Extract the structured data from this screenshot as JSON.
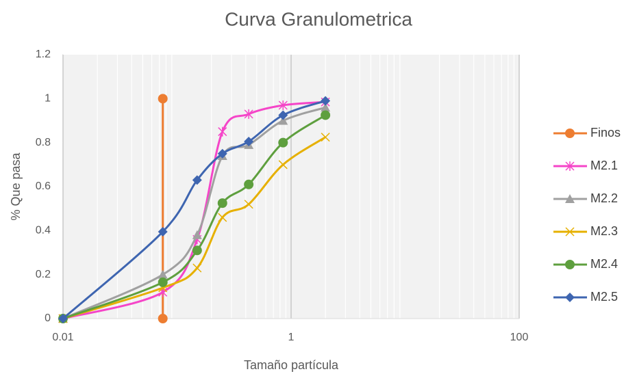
{
  "chart_data": {
    "type": "line",
    "title": "Curva Granulometrica",
    "x_label": "Tamaño partícula",
    "y_label": "% Que pasa",
    "xscale": "log",
    "xlim": [
      0.01,
      100
    ],
    "xticks": [
      0.01,
      1,
      100
    ],
    "ylim": [
      0,
      1.2
    ],
    "yticks": [
      0,
      0.2,
      0.4,
      0.6,
      0.8,
      1,
      1.2
    ],
    "grid": true,
    "legend": "right",
    "series": [
      {
        "name": "Finos",
        "color": "#ED7D31",
        "marker": "circle",
        "x": [
          0.075,
          0.075
        ],
        "values": [
          1,
          0
        ]
      },
      {
        "name": "M2.1",
        "color": "#F545C8",
        "marker": "star",
        "x": [
          0.01,
          0.075,
          0.15,
          0.25,
          0.425,
          0.85,
          2.0
        ],
        "values": [
          0,
          0.12,
          0.36,
          0.85,
          0.93,
          0.97,
          0.985
        ]
      },
      {
        "name": "M2.2",
        "color": "#A0A0A0",
        "marker": "triangle",
        "x": [
          0.01,
          0.075,
          0.15,
          0.25,
          0.425,
          0.85,
          2.0
        ],
        "values": [
          0,
          0.2,
          0.38,
          0.74,
          0.79,
          0.9,
          0.96
        ]
      },
      {
        "name": "M2.3",
        "color": "#E6B000",
        "marker": "x",
        "x": [
          0.01,
          0.075,
          0.15,
          0.25,
          0.425,
          0.85,
          2.0
        ],
        "values": [
          0,
          0.14,
          0.23,
          0.46,
          0.52,
          0.7,
          0.825
        ]
      },
      {
        "name": "M2.4",
        "color": "#5E9F3E",
        "marker": "circle",
        "x": [
          0.01,
          0.075,
          0.15,
          0.25,
          0.425,
          0.85,
          2.0
        ],
        "values": [
          0,
          0.165,
          0.31,
          0.525,
          0.61,
          0.8,
          0.925
        ]
      },
      {
        "name": "M2.5",
        "color": "#3E65B0",
        "marker": "diamond",
        "x": [
          0.01,
          0.075,
          0.15,
          0.25,
          0.425,
          0.85,
          2.0
        ],
        "values": [
          0,
          0.395,
          0.63,
          0.75,
          0.805,
          0.925,
          0.99
        ]
      }
    ]
  }
}
